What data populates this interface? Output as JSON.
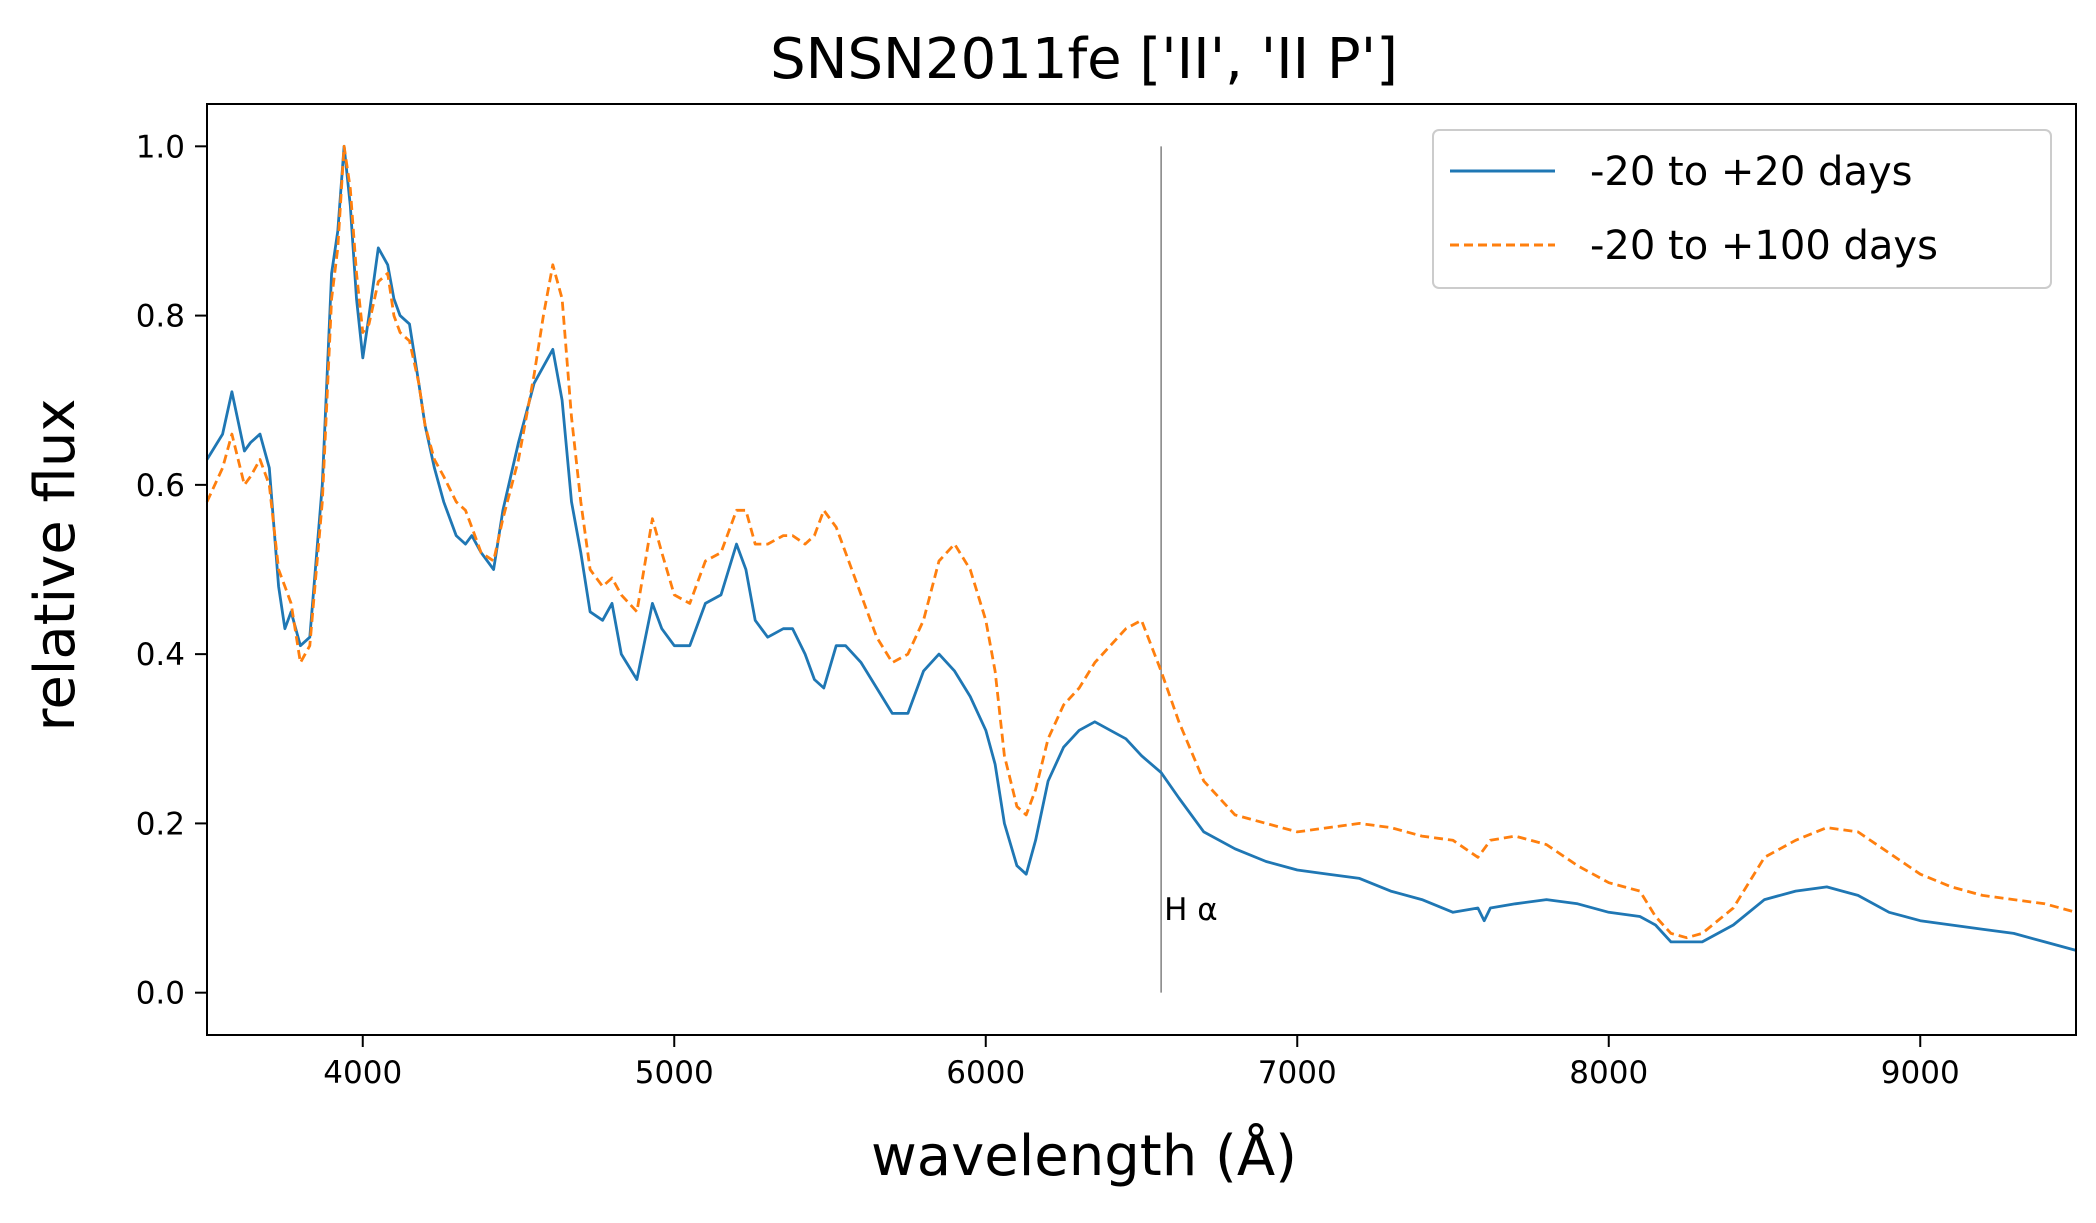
{
  "chart_data": {
    "type": "line",
    "title": "SNSN2011fe ['II', 'II P']",
    "xlabel": "wavelength (Å)",
    "ylabel": "relative flux",
    "xlim": [
      3500,
      9500
    ],
    "ylim": [
      -0.05,
      1.05
    ],
    "xticks": [
      4000,
      5000,
      6000,
      7000,
      8000,
      9000
    ],
    "xtick_labels": [
      "4000",
      "5000",
      "6000",
      "7000",
      "8000",
      "9000"
    ],
    "yticks": [
      0.0,
      0.2,
      0.4,
      0.6,
      0.8,
      1.0
    ],
    "ytick_labels": [
      "0.0",
      "0.2",
      "0.4",
      "0.6",
      "0.8",
      "1.0"
    ],
    "grid": false,
    "legend_position": "top-right",
    "annotation": {
      "text": "H α",
      "x": 6563,
      "line_from_y": 0.0,
      "line_to_y": 1.0
    },
    "series": [
      {
        "name": "-20 to +20 days",
        "style": "solid",
        "color": "#1f77b4",
        "x": [
          3500,
          3550,
          3580,
          3620,
          3640,
          3670,
          3700,
          3730,
          3750,
          3770,
          3800,
          3830,
          3870,
          3900,
          3920,
          3940,
          3960,
          3980,
          4000,
          4020,
          4050,
          4080,
          4100,
          4120,
          4150,
          4180,
          4200,
          4230,
          4260,
          4300,
          4330,
          4350,
          4380,
          4420,
          4450,
          4500,
          4550,
          4580,
          4610,
          4640,
          4670,
          4700,
          4730,
          4770,
          4800,
          4830,
          4880,
          4930,
          4960,
          5000,
          5050,
          5100,
          5150,
          5200,
          5230,
          5260,
          5300,
          5350,
          5380,
          5420,
          5450,
          5480,
          5520,
          5550,
          5600,
          5650,
          5700,
          5750,
          5800,
          5850,
          5900,
          5950,
          6000,
          6030,
          6060,
          6100,
          6130,
          6160,
          6200,
          6250,
          6300,
          6350,
          6400,
          6450,
          6500,
          6563,
          6620,
          6700,
          6800,
          6900,
          7000,
          7100,
          7200,
          7300,
          7400,
          7500,
          7580,
          7600,
          7620,
          7700,
          7800,
          7900,
          8000,
          8100,
          8150,
          8200,
          8250,
          8300,
          8400,
          8500,
          8600,
          8700,
          8800,
          8900,
          9000,
          9100,
          9200,
          9300,
          9400,
          9500
        ],
        "values": [
          0.63,
          0.66,
          0.71,
          0.64,
          0.65,
          0.66,
          0.62,
          0.48,
          0.43,
          0.45,
          0.41,
          0.42,
          0.6,
          0.85,
          0.9,
          1.0,
          0.93,
          0.82,
          0.75,
          0.8,
          0.88,
          0.86,
          0.82,
          0.8,
          0.79,
          0.72,
          0.67,
          0.62,
          0.58,
          0.54,
          0.53,
          0.54,
          0.52,
          0.5,
          0.57,
          0.65,
          0.72,
          0.74,
          0.76,
          0.7,
          0.58,
          0.52,
          0.45,
          0.44,
          0.46,
          0.4,
          0.37,
          0.46,
          0.43,
          0.41,
          0.41,
          0.46,
          0.47,
          0.53,
          0.5,
          0.44,
          0.42,
          0.43,
          0.43,
          0.4,
          0.37,
          0.36,
          0.41,
          0.41,
          0.39,
          0.36,
          0.33,
          0.33,
          0.38,
          0.4,
          0.38,
          0.35,
          0.31,
          0.27,
          0.2,
          0.15,
          0.14,
          0.18,
          0.25,
          0.29,
          0.31,
          0.32,
          0.31,
          0.3,
          0.28,
          0.26,
          0.23,
          0.19,
          0.17,
          0.155,
          0.145,
          0.14,
          0.135,
          0.12,
          0.11,
          0.095,
          0.1,
          0.085,
          0.1,
          0.105,
          0.11,
          0.105,
          0.095,
          0.09,
          0.08,
          0.06,
          0.06,
          0.06,
          0.08,
          0.11,
          0.12,
          0.125,
          0.115,
          0.095,
          0.085,
          0.08,
          0.075,
          0.07,
          0.06,
          0.05
        ]
      },
      {
        "name": "-20 to +100 days",
        "style": "dashed",
        "color": "#ff7f0e",
        "x": [
          3500,
          3550,
          3580,
          3620,
          3640,
          3670,
          3700,
          3730,
          3750,
          3770,
          3800,
          3830,
          3870,
          3900,
          3920,
          3940,
          3960,
          3980,
          4000,
          4020,
          4050,
          4080,
          4100,
          4120,
          4150,
          4180,
          4200,
          4230,
          4260,
          4300,
          4330,
          4350,
          4380,
          4420,
          4450,
          4500,
          4550,
          4580,
          4610,
          4640,
          4670,
          4700,
          4730,
          4770,
          4800,
          4830,
          4880,
          4930,
          4960,
          5000,
          5050,
          5100,
          5150,
          5200,
          5230,
          5260,
          5300,
          5350,
          5380,
          5420,
          5450,
          5480,
          5520,
          5550,
          5600,
          5650,
          5700,
          5750,
          5800,
          5850,
          5900,
          5950,
          6000,
          6030,
          6060,
          6100,
          6130,
          6160,
          6200,
          6250,
          6300,
          6350,
          6400,
          6450,
          6500,
          6563,
          6620,
          6700,
          6800,
          6900,
          7000,
          7100,
          7200,
          7300,
          7400,
          7500,
          7580,
          7600,
          7620,
          7700,
          7800,
          7900,
          8000,
          8100,
          8150,
          8200,
          8250,
          8300,
          8400,
          8500,
          8600,
          8700,
          8800,
          8900,
          9000,
          9100,
          9200,
          9300,
          9400,
          9500
        ],
        "values": [
          0.58,
          0.62,
          0.66,
          0.6,
          0.61,
          0.63,
          0.6,
          0.5,
          0.48,
          0.46,
          0.39,
          0.41,
          0.58,
          0.82,
          0.88,
          1.0,
          0.95,
          0.85,
          0.78,
          0.79,
          0.84,
          0.85,
          0.8,
          0.78,
          0.77,
          0.72,
          0.67,
          0.63,
          0.61,
          0.58,
          0.57,
          0.55,
          0.52,
          0.51,
          0.56,
          0.63,
          0.73,
          0.8,
          0.86,
          0.82,
          0.68,
          0.58,
          0.5,
          0.48,
          0.49,
          0.47,
          0.45,
          0.56,
          0.52,
          0.47,
          0.46,
          0.51,
          0.52,
          0.57,
          0.57,
          0.53,
          0.53,
          0.54,
          0.54,
          0.53,
          0.54,
          0.57,
          0.55,
          0.52,
          0.47,
          0.42,
          0.39,
          0.4,
          0.44,
          0.51,
          0.53,
          0.5,
          0.44,
          0.38,
          0.28,
          0.22,
          0.21,
          0.24,
          0.3,
          0.34,
          0.36,
          0.39,
          0.41,
          0.43,
          0.44,
          0.38,
          0.32,
          0.25,
          0.21,
          0.2,
          0.19,
          0.195,
          0.2,
          0.195,
          0.185,
          0.18,
          0.16,
          0.17,
          0.18,
          0.185,
          0.175,
          0.15,
          0.13,
          0.12,
          0.09,
          0.07,
          0.065,
          0.07,
          0.1,
          0.16,
          0.18,
          0.195,
          0.19,
          0.165,
          0.14,
          0.125,
          0.115,
          0.11,
          0.105,
          0.095
        ]
      }
    ]
  }
}
